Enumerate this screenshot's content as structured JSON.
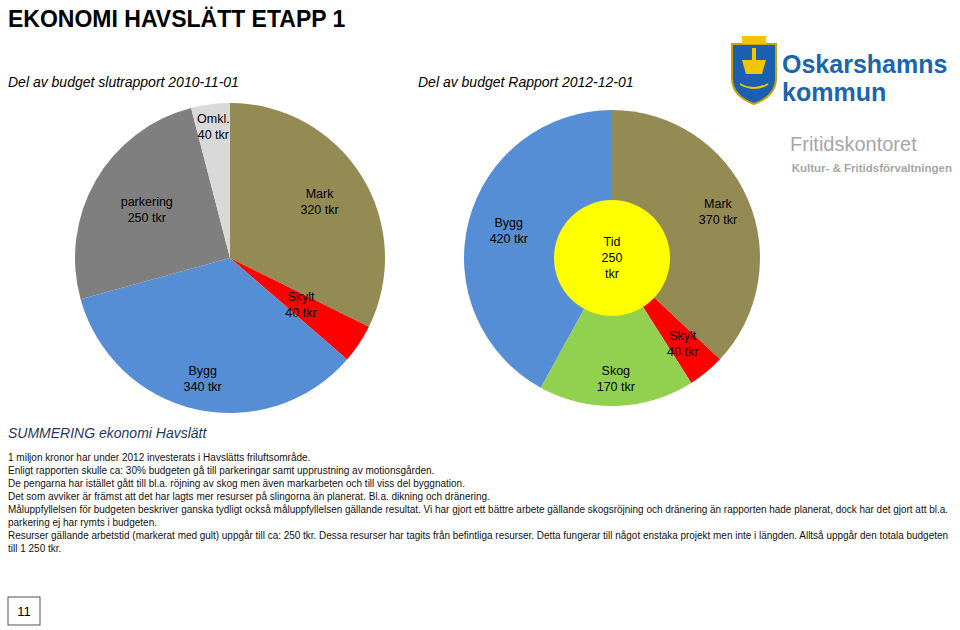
{
  "header": {
    "title": "EKONOMI HAVSLÄTT ETAPP 1"
  },
  "logo": {
    "name_line1": "Oskarshamns",
    "name_line2": "kommun"
  },
  "department": {
    "title": "Fritidskontoret",
    "subtitle": "Kultur- & Fritidsförvaltningen"
  },
  "chart_data": [
    {
      "type": "pie",
      "title": "Del av budget slutrapport 2010-11-01",
      "categories": [
        "Mark",
        "Skylt",
        "Bygg",
        "parkering",
        "Omkl."
      ],
      "values": [
        320,
        40,
        340,
        250,
        40
      ],
      "value_labels": [
        "320 tkr",
        "40 tkr",
        "340 tkr",
        "250 tkr",
        "40 tkr"
      ],
      "colors": [
        "#948a54",
        "#ff0000",
        "#558ed5",
        "#7f7f7f",
        "#d9d9d9"
      ],
      "data_labels": true
    },
    {
      "type": "pie",
      "title": "Del av budget Rapport 2012-12-01",
      "categories": [
        "Mark",
        "Skylt",
        "Skog",
        "Bygg"
      ],
      "values": [
        370,
        40,
        170,
        420
      ],
      "value_labels": [
        "370 tkr",
        "40 tkr",
        "170 tkr",
        "420 tkr"
      ],
      "colors": [
        "#948a54",
        "#ff0000",
        "#92d050",
        "#558ed5"
      ],
      "data_labels": true,
      "overlay": {
        "label": "Tid",
        "value": 250,
        "value_label": "250 tkr",
        "color": "#ffff00"
      }
    }
  ],
  "summary": {
    "title": "SUMMERING ekonomi Havslätt",
    "lines": [
      "1 miljon kronor har under 2012 investerats i Havslätts friluftsområde.",
      "Enligt rapporten skulle ca: 30% budgeten gå till parkeringar samt upprustning av motionsgården.",
      "De pengarna har istället gått till bl.a. röjning av skog men även markarbeten och till viss del byggnation.",
      "Det som avviker är främst att det har lagts mer resurser på slingorna än planerat. Bl.a. dikning och dränering.",
      "Måluppfyllelsen för budgeten beskriver ganska tydligt också måluppfyllelsen gällande resultat. Vi har gjort ett bättre arbete gällande skogsröjning och dränering än rapporten hade planerat, dock har det gjort att bl.a.",
      "parkering ej har rymts i budgeten.",
      "Resurser gällande arbetstid (markerat med gult) uppgår till ca: 250 tkr. Dessa resurser har tagits från befintliga resurser. Detta fungerar till något enstaka projekt men inte i längden. Alltså uppgår den totala budgeten",
      "till 1 250 tkr."
    ]
  },
  "page_number": 11
}
